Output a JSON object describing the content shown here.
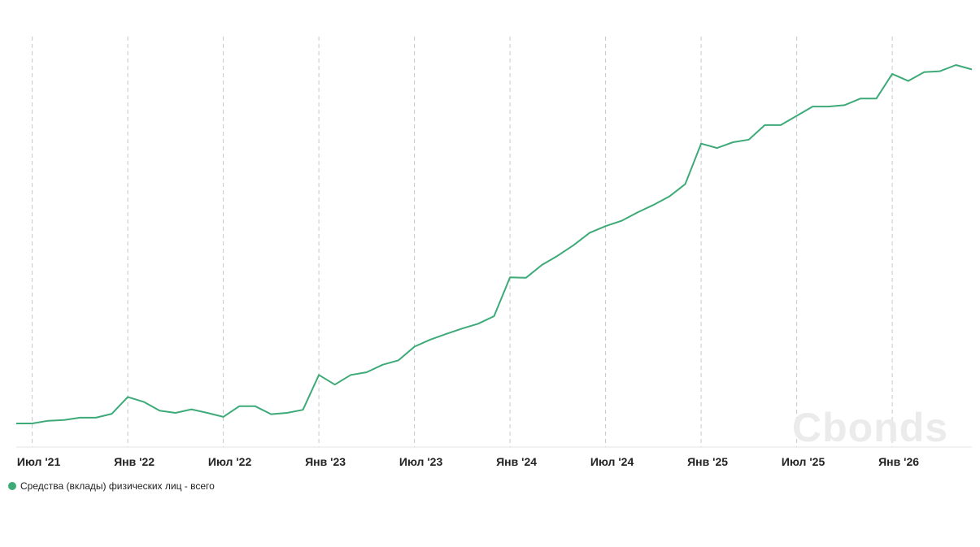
{
  "chart_data": {
    "type": "line",
    "x_ticks": [
      "Июл '21",
      "Янв '22",
      "Июл '22",
      "Янв '23",
      "Июл '23",
      "Янв '24",
      "Июл '24",
      "Янв '25",
      "Июл '25",
      "Янв '26"
    ],
    "grid": "vertical dashed at x ticks",
    "legend_placement": "bottom-left",
    "watermark": "Cbonds",
    "series": [
      {
        "name": "Средства (вклады) физических лиц - всего",
        "color": "#3daa78",
        "x": [
          "2021-06",
          "2021-07",
          "2021-08",
          "2021-09",
          "2021-10",
          "2021-11",
          "2021-12",
          "2022-01",
          "2022-02",
          "2022-03",
          "2022-04",
          "2022-05",
          "2022-06",
          "2022-07",
          "2022-08",
          "2022-09",
          "2022-10",
          "2022-11",
          "2022-12",
          "2023-01",
          "2023-02",
          "2023-03",
          "2023-04",
          "2023-05",
          "2023-06",
          "2023-07",
          "2023-08",
          "2023-09",
          "2023-10",
          "2023-11",
          "2023-12",
          "2024-01",
          "2024-02",
          "2024-03",
          "2024-04",
          "2024-05",
          "2024-06",
          "2024-07",
          "2024-08",
          "2024-09",
          "2024-10",
          "2024-11",
          "2024-12",
          "2025-01",
          "2025-02",
          "2025-03",
          "2025-04",
          "2025-05",
          "2025-06",
          "2025-07",
          "2025-08",
          "2025-09",
          "2025-10",
          "2025-11",
          "2025-12",
          "2026-01",
          "2026-02",
          "2026-03",
          "2026-04",
          "2026-05",
          "2026-06"
        ],
        "values": [
          0.0,
          0.0,
          0.6,
          0.8,
          1.3,
          1.3,
          2.2,
          6.0,
          4.9,
          2.9,
          2.4,
          3.2,
          2.4,
          1.5,
          3.9,
          3.9,
          2.1,
          2.4,
          3.1,
          11.0,
          8.8,
          11.0,
          11.6,
          13.3,
          14.3,
          17.4,
          19.0,
          20.3,
          21.5,
          22.6,
          24.3,
          33.1,
          33.0,
          35.9,
          38.0,
          40.4,
          43.2,
          44.7,
          45.9,
          47.8,
          49.5,
          51.4,
          54.2,
          63.4,
          62.4,
          63.7,
          64.3,
          67.6,
          67.6,
          69.7,
          71.8,
          71.8,
          72.1,
          73.6,
          73.6,
          79.2,
          77.6,
          79.6,
          79.8,
          81.2,
          80.2
        ]
      }
    ]
  }
}
